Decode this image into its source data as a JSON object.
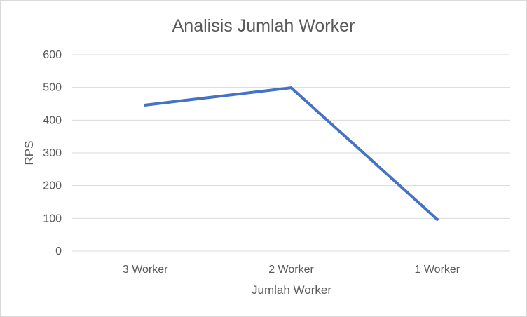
{
  "chart_data": {
    "type": "line",
    "title": "Analisis Jumlah Worker",
    "xlabel": "Jumlah Worker",
    "ylabel": "RPS",
    "categories": [
      "3 Worker",
      "2 Worker",
      "1 Worker"
    ],
    "series": [
      {
        "values": [
          446,
          499,
          97
        ],
        "color": "#4472c4"
      }
    ],
    "ylim": [
      0,
      600
    ],
    "yticks": [
      "0",
      "100",
      "200",
      "300",
      "400",
      "500",
      "600"
    ],
    "grid": true,
    "legend": "none"
  }
}
